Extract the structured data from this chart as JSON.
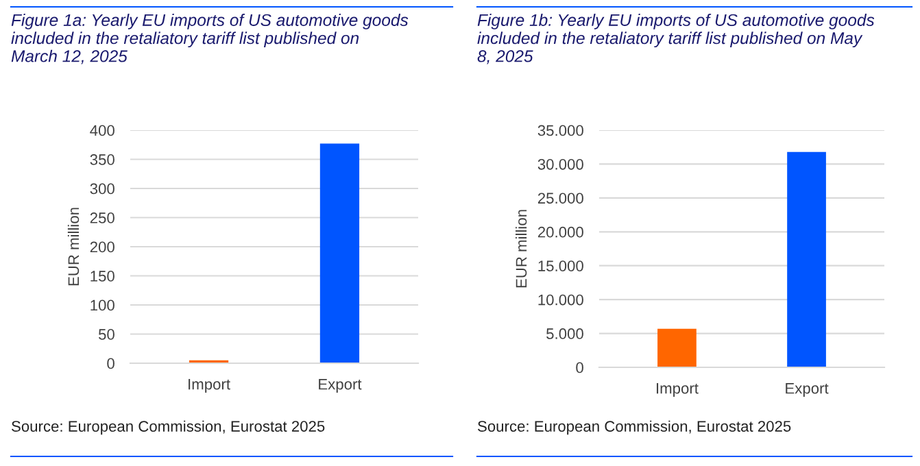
{
  "chart_data": [
    {
      "type": "bar",
      "title": "Figure 1a: Yearly EU imports of US automotive goods\nincluded in the retaliatory tariff list published on\nMarch 12, 2025",
      "ylabel": "EUR million",
      "categories": [
        "Import",
        "Export"
      ],
      "values": [
        5,
        377
      ],
      "colors": [
        "#ff6600",
        "#0055ff"
      ],
      "ylim": [
        0,
        400
      ],
      "yticks": [
        0,
        50,
        100,
        150,
        200,
        250,
        300,
        350,
        400
      ],
      "grid": "y",
      "annotations": [
        "Source: European Commission, Eurostat 2025"
      ]
    },
    {
      "type": "bar",
      "title": "Figure 1b: Yearly EU imports of US automotive goods\nincluded in the retaliatory tariff list published on May\n8, 2025",
      "ylabel": "EUR million",
      "categories": [
        "Import",
        "Export"
      ],
      "values": [
        5700,
        31800
      ],
      "colors": [
        "#ff6600",
        "#0055ff"
      ],
      "ylim": [
        0,
        35000
      ],
      "yticks": [
        0,
        {
          "value": 5000,
          "label": "5.000"
        },
        {
          "value": 10000,
          "label": "10.000"
        },
        {
          "value": 15000,
          "label": "15.000"
        },
        {
          "value": 20000,
          "label": "20.000"
        },
        {
          "value": 25000,
          "label": "25.000"
        },
        {
          "value": 30000,
          "label": "30.000"
        },
        {
          "value": 35000,
          "label": "35.000"
        }
      ],
      "grid": "y",
      "annotations": [
        "Source: European Commission, Eurostat 2025"
      ]
    }
  ]
}
